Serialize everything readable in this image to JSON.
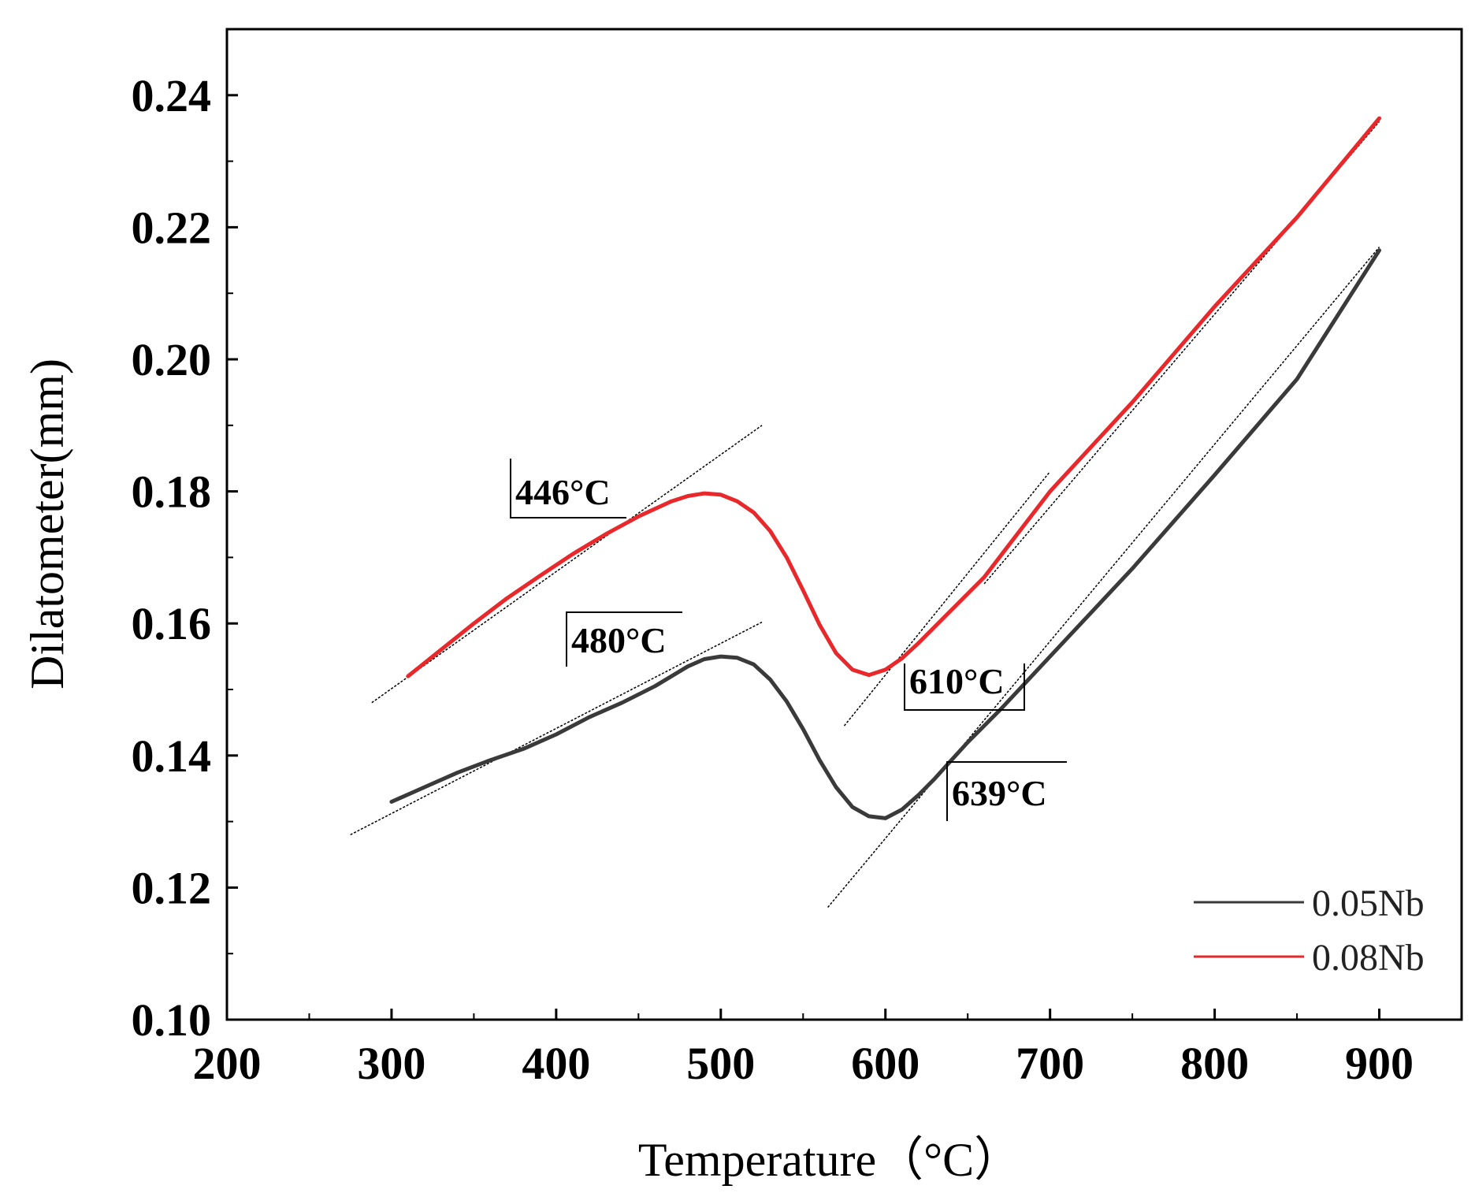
{
  "chart_data": {
    "type": "line",
    "title": "",
    "xlabel": "Temperature（°C）",
    "ylabel": "Dilatometer(mm)",
    "xlim": [
      200,
      950
    ],
    "ylim": [
      0.1,
      0.25
    ],
    "xticks": [
      200,
      300,
      400,
      500,
      600,
      700,
      800,
      900
    ],
    "xtick_labels": [
      "200",
      "300",
      "400",
      "500",
      "600",
      "700",
      "800",
      "900"
    ],
    "yticks": [
      0.1,
      0.12,
      0.14,
      0.16,
      0.18,
      0.2,
      0.22,
      0.24
    ],
    "ytick_labels": [
      "0.10",
      "0.12",
      "0.14",
      "0.16",
      "0.18",
      "0.20",
      "0.22",
      "0.24"
    ],
    "grid": false,
    "legend_position": "bottom-right",
    "series": [
      {
        "name": "0.05Nb",
        "color": "#3a3a3a",
        "x": [
          300,
          320,
          340,
          360,
          380,
          400,
          420,
          440,
          460,
          480,
          490,
          500,
          510,
          520,
          530,
          540,
          550,
          560,
          570,
          580,
          590,
          600,
          610,
          620,
          630,
          639,
          650,
          670,
          700,
          750,
          800,
          850,
          900
        ],
        "y": [
          0.133,
          0.1352,
          0.1374,
          0.1393,
          0.141,
          0.1432,
          0.1458,
          0.148,
          0.1505,
          0.1535,
          0.1546,
          0.155,
          0.1548,
          0.1538,
          0.1515,
          0.1482,
          0.144,
          0.1393,
          0.1352,
          0.1322,
          0.1308,
          0.1305,
          0.1318,
          0.134,
          0.1365,
          0.139,
          0.142,
          0.147,
          0.155,
          0.1683,
          0.1825,
          0.197,
          0.2165
        ]
      },
      {
        "name": "0.08Nb",
        "color": "#e8282a",
        "x": [
          310,
          330,
          350,
          370,
          390,
          410,
          430,
          450,
          470,
          480,
          490,
          500,
          510,
          520,
          530,
          540,
          550,
          560,
          570,
          580,
          590,
          600,
          610,
          620,
          640,
          660,
          700,
          750,
          800,
          850,
          900
        ],
        "y": [
          0.152,
          0.156,
          0.16,
          0.1638,
          0.1672,
          0.1705,
          0.1735,
          0.1762,
          0.1785,
          0.1793,
          0.1797,
          0.1795,
          0.1785,
          0.1768,
          0.174,
          0.17,
          0.165,
          0.1598,
          0.1555,
          0.153,
          0.1522,
          0.153,
          0.1547,
          0.157,
          0.162,
          0.167,
          0.18,
          0.1935,
          0.208,
          0.2215,
          0.2365
        ]
      }
    ],
    "tangent_lines": [
      {
        "x": [
          288,
          525
        ],
        "y": [
          0.148,
          0.19
        ]
      },
      {
        "x": [
          275,
          525
        ],
        "y": [
          0.128,
          0.1602
        ]
      },
      {
        "x": [
          575,
          700
        ],
        "y": [
          0.1445,
          0.183
        ]
      },
      {
        "x": [
          565,
          900
        ],
        "y": [
          0.117,
          0.217
        ]
      },
      {
        "x": [
          660,
          900
        ],
        "y": [
          0.166,
          0.236
        ]
      }
    ],
    "annotations": [
      {
        "label": "446°C",
        "x": 446
      },
      {
        "label": "480°C",
        "x": 480
      },
      {
        "label": "610°C",
        "x": 610
      },
      {
        "label": "639°C",
        "x": 639
      }
    ]
  }
}
